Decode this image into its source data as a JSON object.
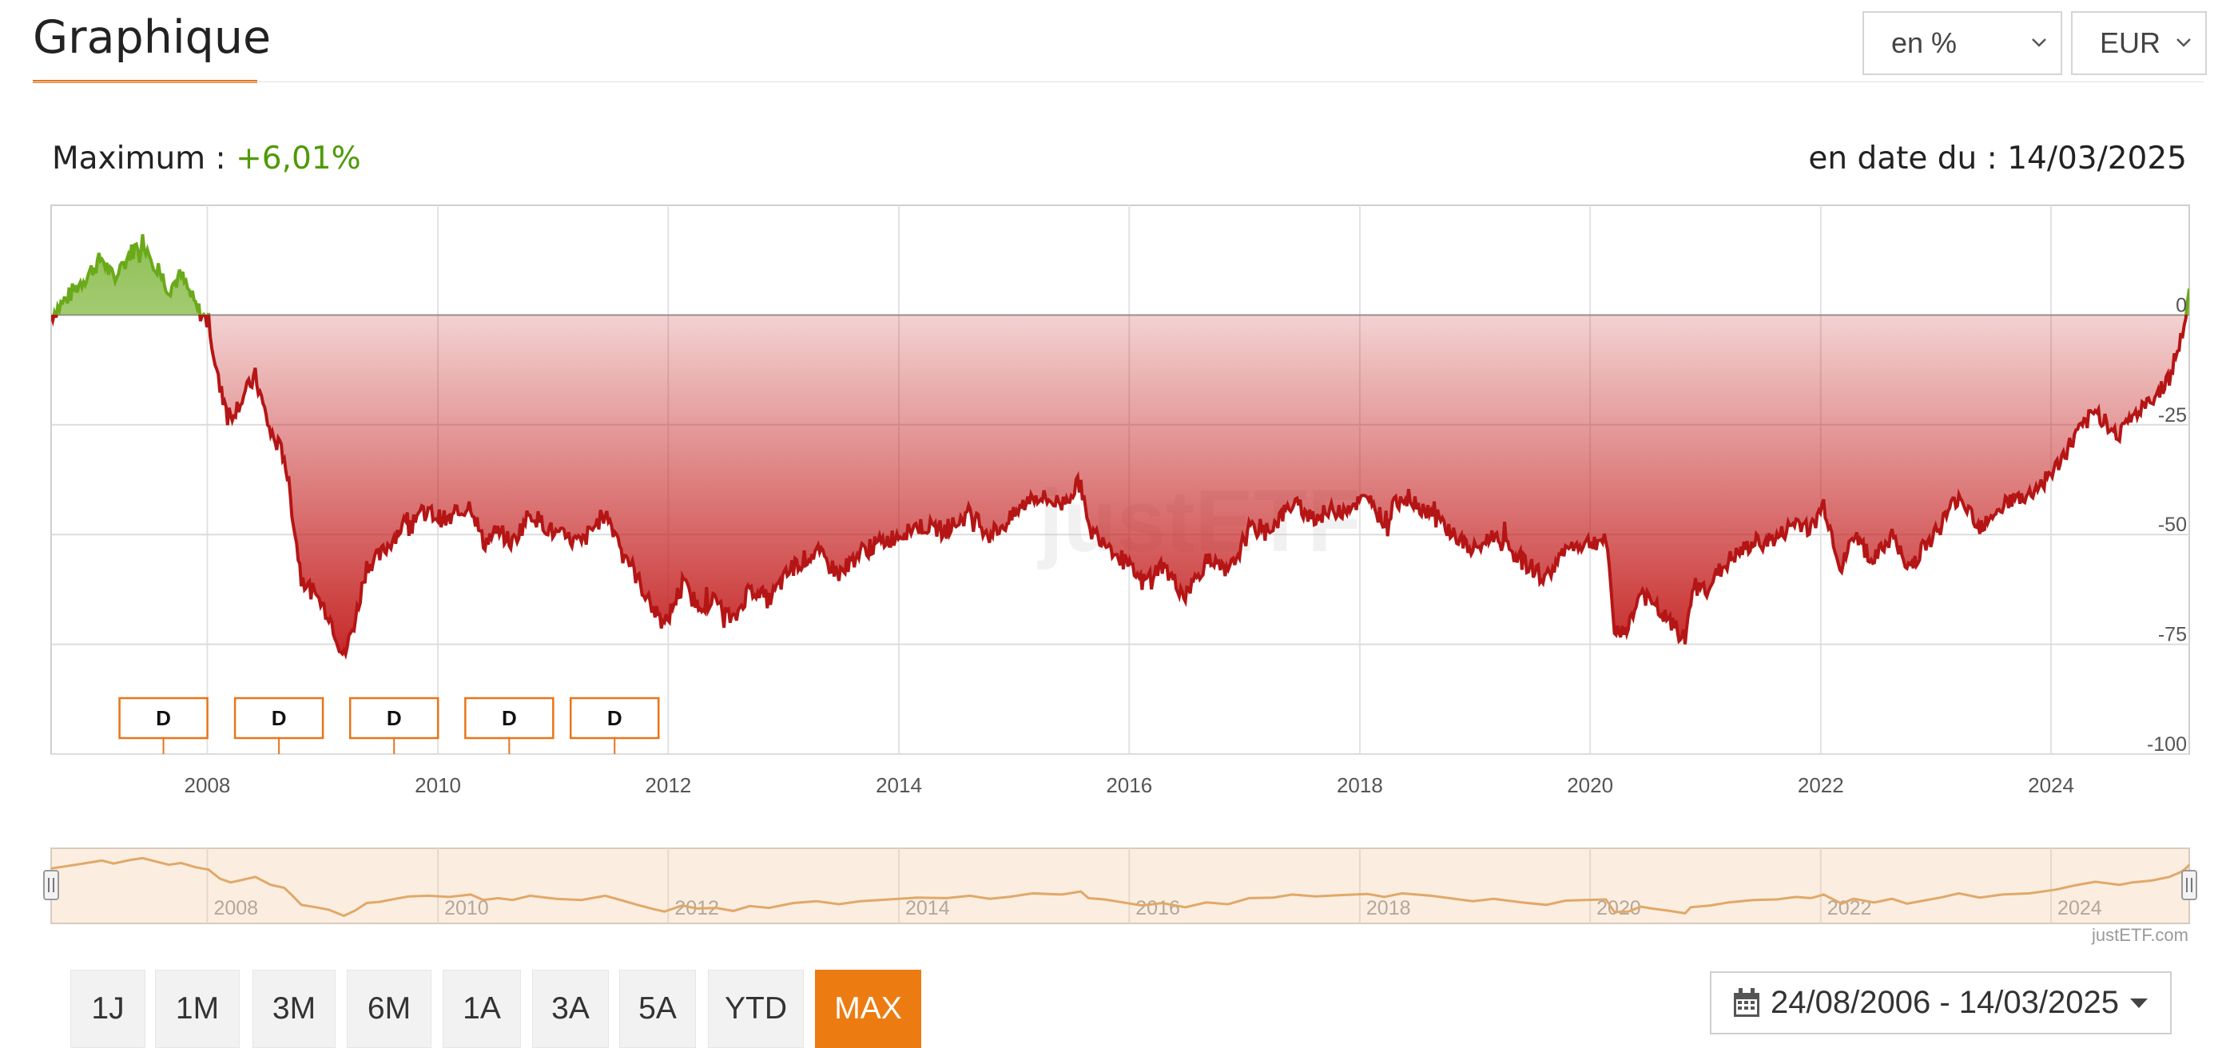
{
  "header": {
    "title": "Graphique"
  },
  "selectors": {
    "mode": "en %",
    "currency": "EUR"
  },
  "summary": {
    "max_label": "Maximum : ",
    "max_value": "+6,01%",
    "date_label": "en date du : 14/03/2025"
  },
  "dividends": {
    "label": "D",
    "dates": [
      "2007-08-15",
      "2008-08-15",
      "2009-08-15",
      "2010-08-15",
      "2011-07-15"
    ]
  },
  "ranges": [
    "1J",
    "1M",
    "3M",
    "6M",
    "1A",
    "3A",
    "5A",
    "YTD",
    "MAX"
  ],
  "active_range": "MAX",
  "date_range": "24/08/2006 - 14/03/2025",
  "credit": "justETF.com",
  "watermark": "justETF",
  "colors": {
    "positive": "#6aaa1a",
    "negative": "#b51515",
    "accent": "#ec7c12"
  },
  "icons": {
    "calendar": "calendar-icon",
    "dropdown": "chevron-down-icon",
    "caret": "caret-down-icon"
  },
  "chart_data": {
    "type": "area",
    "ylabel_ticks": [
      "0",
      "-25",
      "-50",
      "-75",
      "-100"
    ],
    "yticks": [
      0,
      -25,
      -50,
      -75,
      -100
    ],
    "ylim": [
      -100,
      25
    ],
    "xlabel_ticks": [
      "2008",
      "2010",
      "2012",
      "2014",
      "2016",
      "2018",
      "2020",
      "2022",
      "2024"
    ],
    "xticks": [
      "2008-01-01",
      "2010-01-01",
      "2012-01-01",
      "2014-01-01",
      "2016-01-01",
      "2018-01-01",
      "2020-01-01",
      "2022-01-01",
      "2024-01-01"
    ],
    "xlim": [
      "2006-08-24",
      "2025-03-14"
    ],
    "grid": true,
    "series": [
      {
        "unit": "%",
        "points": [
          [
            "2006-08-24",
            0
          ],
          [
            "2006-10-15",
            4
          ],
          [
            "2006-12-15",
            9
          ],
          [
            "2007-02-01",
            13
          ],
          [
            "2007-03-10",
            8
          ],
          [
            "2007-05-01",
            14
          ],
          [
            "2007-06-10",
            17
          ],
          [
            "2007-07-25",
            11
          ],
          [
            "2007-09-01",
            6
          ],
          [
            "2007-10-10",
            9
          ],
          [
            "2007-11-25",
            2
          ],
          [
            "2008-01-05",
            -2
          ],
          [
            "2008-02-10",
            -17
          ],
          [
            "2008-03-15",
            -23
          ],
          [
            "2008-04-20",
            -19
          ],
          [
            "2008-06-01",
            -14
          ],
          [
            "2008-07-20",
            -27
          ],
          [
            "2008-09-01",
            -32
          ],
          [
            "2008-09-25",
            -44
          ],
          [
            "2008-10-25",
            -60
          ],
          [
            "2008-12-10",
            -64
          ],
          [
            "2009-01-20",
            -68
          ],
          [
            "2009-03-09",
            -78
          ],
          [
            "2009-04-15",
            -69
          ],
          [
            "2009-05-20",
            -57
          ],
          [
            "2009-07-01",
            -55
          ],
          [
            "2009-08-20",
            -50
          ],
          [
            "2009-10-01",
            -46
          ],
          [
            "2009-12-01",
            -45
          ],
          [
            "2010-02-05",
            -47
          ],
          [
            "2010-04-15",
            -43
          ],
          [
            "2010-05-25",
            -52
          ],
          [
            "2010-07-10",
            -49
          ],
          [
            "2010-08-25",
            -52
          ],
          [
            "2010-10-20",
            -45
          ],
          [
            "2011-01-10",
            -50
          ],
          [
            "2011-04-01",
            -52
          ],
          [
            "2011-06-15",
            -45
          ],
          [
            "2011-08-10",
            -53
          ],
          [
            "2011-09-25",
            -60
          ],
          [
            "2011-11-15",
            -67
          ],
          [
            "2011-12-20",
            -71
          ],
          [
            "2012-02-15",
            -61
          ],
          [
            "2012-04-01",
            -66
          ],
          [
            "2012-06-01",
            -65
          ],
          [
            "2012-07-25",
            -70
          ],
          [
            "2012-09-15",
            -62
          ],
          [
            "2012-11-15",
            -65
          ],
          [
            "2013-02-01",
            -57
          ],
          [
            "2013-04-15",
            -54
          ],
          [
            "2013-06-25",
            -59
          ],
          [
            "2013-09-01",
            -54
          ],
          [
            "2013-12-01",
            -51
          ],
          [
            "2014-03-01",
            -48
          ],
          [
            "2014-06-01",
            -49
          ],
          [
            "2014-08-15",
            -45
          ],
          [
            "2014-10-15",
            -50
          ],
          [
            "2014-12-15",
            -47
          ],
          [
            "2015-03-01",
            -41
          ],
          [
            "2015-06-01",
            -43
          ],
          [
            "2015-08-01",
            -38
          ],
          [
            "2015-08-25",
            -49
          ],
          [
            "2015-10-15",
            -51
          ],
          [
            "2016-02-11",
            -61
          ],
          [
            "2016-04-15",
            -57
          ],
          [
            "2016-06-27",
            -64
          ],
          [
            "2016-09-01",
            -56
          ],
          [
            "2016-11-10",
            -59
          ],
          [
            "2017-01-15",
            -49
          ],
          [
            "2017-04-01",
            -48
          ],
          [
            "2017-06-01",
            -43
          ],
          [
            "2017-08-15",
            -46
          ],
          [
            "2017-11-01",
            -44
          ],
          [
            "2018-01-25",
            -42
          ],
          [
            "2018-03-20",
            -47
          ],
          [
            "2018-05-15",
            -41
          ],
          [
            "2018-08-15",
            -45
          ],
          [
            "2018-12-25",
            -54
          ],
          [
            "2019-03-01",
            -50
          ],
          [
            "2019-05-30",
            -56
          ],
          [
            "2019-08-15",
            -60
          ],
          [
            "2019-10-15",
            -53
          ],
          [
            "2019-12-15",
            -52
          ],
          [
            "2020-02-20",
            -51
          ],
          [
            "2020-03-18",
            -72
          ],
          [
            "2020-05-01",
            -71
          ],
          [
            "2020-06-10",
            -63
          ],
          [
            "2020-07-15",
            -66
          ],
          [
            "2020-09-10",
            -70
          ],
          [
            "2020-10-28",
            -74
          ],
          [
            "2020-11-15",
            -64
          ],
          [
            "2021-01-15",
            -61
          ],
          [
            "2021-03-15",
            -56
          ],
          [
            "2021-06-01",
            -52
          ],
          [
            "2021-08-15",
            -51
          ],
          [
            "2021-10-15",
            -47
          ],
          [
            "2021-12-01",
            -49
          ],
          [
            "2022-01-10",
            -43
          ],
          [
            "2022-03-08",
            -58
          ],
          [
            "2022-04-15",
            -50
          ],
          [
            "2022-06-20",
            -56
          ],
          [
            "2022-08-15",
            -50
          ],
          [
            "2022-10-01",
            -58
          ],
          [
            "2023-01-15",
            -48
          ],
          [
            "2023-03-15",
            -41
          ],
          [
            "2023-05-20",
            -48
          ],
          [
            "2023-07-30",
            -43
          ],
          [
            "2023-10-25",
            -41
          ],
          [
            "2024-01-15",
            -35
          ],
          [
            "2024-03-15",
            -28
          ],
          [
            "2024-05-20",
            -22
          ],
          [
            "2024-08-05",
            -27
          ],
          [
            "2024-09-15",
            -23
          ],
          [
            "2024-11-15",
            -20
          ],
          [
            "2025-01-10",
            -14
          ],
          [
            "2025-02-15",
            -6
          ],
          [
            "2025-03-03",
            0
          ],
          [
            "2025-03-14",
            6
          ]
        ]
      }
    ],
    "navigator_ticks": [
      "2008",
      "2010",
      "2012",
      "2014",
      "2016",
      "2018",
      "2020",
      "2022",
      "2024"
    ]
  }
}
